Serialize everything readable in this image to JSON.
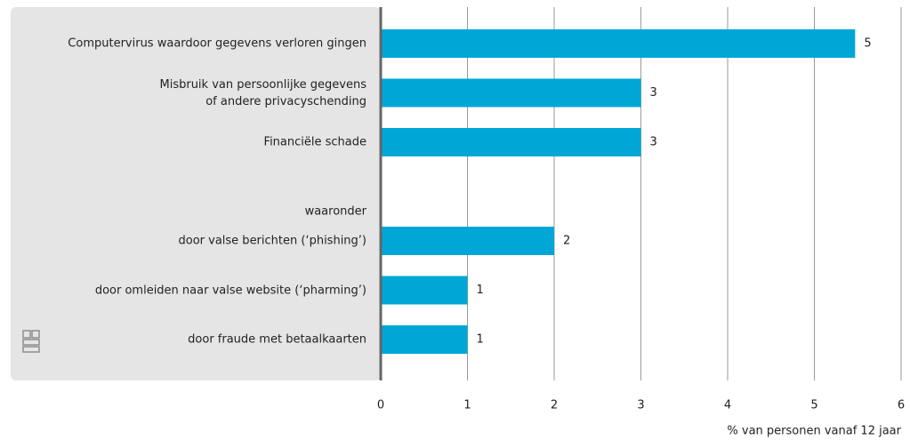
{
  "chart_data": {
    "type": "bar",
    "orientation": "horizontal",
    "categories": [
      "Computervirus waardoor gegevens verloren gingen",
      "Misbruik van persoonlijke gegevens\nof andere privacyschending",
      "Financiële schade",
      "waaronder",
      "door valse berichten (‘phishing’)",
      "door omleiden naar valse website (‘pharming’)",
      "door fraude met betaalkaarten"
    ],
    "values": [
      5.47,
      3,
      3,
      null,
      2,
      1,
      1
    ],
    "value_labels": [
      "5",
      "3",
      "3",
      null,
      "2",
      "1",
      "1"
    ],
    "color": "#00a7d6",
    "xlim": [
      0,
      6
    ],
    "xticks": [
      0,
      1,
      2,
      3,
      4,
      5,
      6
    ],
    "xlabel": "% van personen vanaf 12 jaar",
    "grid": true
  }
}
